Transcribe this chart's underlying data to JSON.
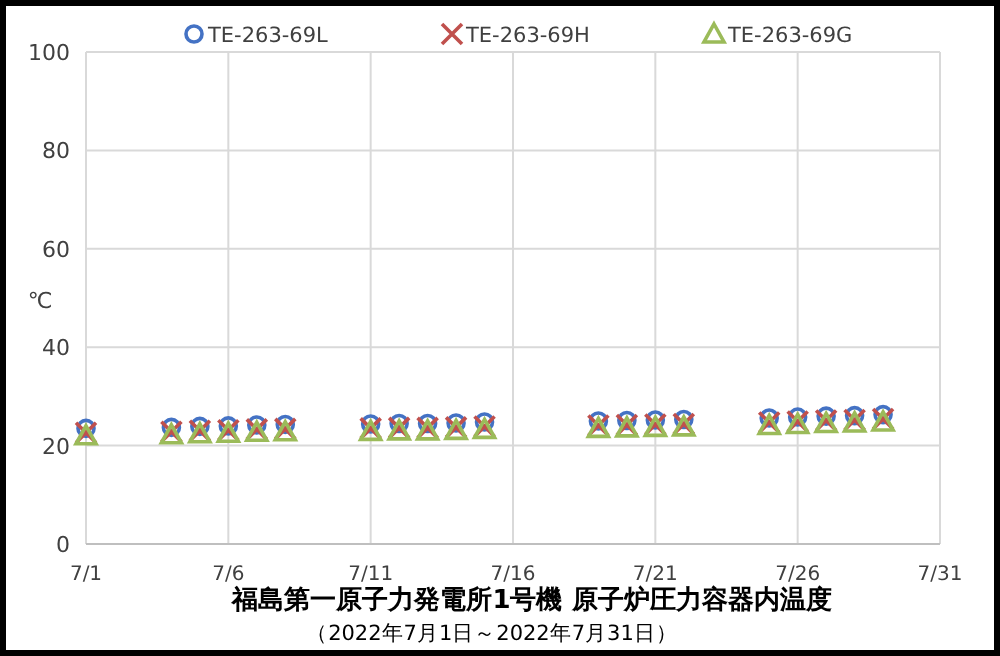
{
  "chart_data": {
    "type": "scatter",
    "title": "福島第一原子力発電所1号機 原子炉圧力容器内温度",
    "subtitle": "（2022年7月1日～2022年7月31日）",
    "ylabel": "℃",
    "x": [
      "2022-07-01",
      "2022-07-04",
      "2022-07-05",
      "2022-07-06",
      "2022-07-07",
      "2022-07-08",
      "2022-07-11",
      "2022-07-12",
      "2022-07-13",
      "2022-07-14",
      "2022-07-15",
      "2022-07-19",
      "2022-07-20",
      "2022-07-21",
      "2022-07-22",
      "2022-07-25",
      "2022-07-26",
      "2022-07-27",
      "2022-07-28",
      "2022-07-29"
    ],
    "series": [
      {
        "name": "TE-263-69L",
        "color": "#4472c4",
        "marker": "circle",
        "values": [
          23.5,
          23.7,
          23.9,
          24.0,
          24.2,
          24.3,
          24.4,
          24.5,
          24.5,
          24.6,
          24.8,
          25.0,
          25.1,
          25.2,
          25.3,
          25.6,
          25.8,
          26.0,
          26.1,
          26.3
        ]
      },
      {
        "name": "TE-263-69H",
        "color": "#c0504d",
        "marker": "cross",
        "values": [
          22.6,
          22.8,
          23.0,
          23.1,
          23.3,
          23.4,
          23.5,
          23.6,
          23.6,
          23.7,
          23.9,
          24.1,
          24.2,
          24.3,
          24.4,
          24.7,
          24.9,
          25.1,
          25.2,
          25.4
        ]
      },
      {
        "name": "TE-263-69G",
        "color": "#9bbb59",
        "marker": "triangle",
        "values": [
          22.0,
          22.2,
          22.4,
          22.5,
          22.7,
          22.8,
          22.9,
          23.0,
          23.0,
          23.1,
          23.3,
          23.5,
          23.6,
          23.7,
          23.8,
          24.1,
          24.3,
          24.5,
          24.6,
          24.8
        ]
      }
    ],
    "xlim": [
      "2022-07-01",
      "2022-07-31"
    ],
    "xticks": [
      {
        "value": "2022-07-01",
        "label": "7/1"
      },
      {
        "value": "2022-07-06",
        "label": "7/6"
      },
      {
        "value": "2022-07-11",
        "label": "7/11"
      },
      {
        "value": "2022-07-16",
        "label": "7/16"
      },
      {
        "value": "2022-07-21",
        "label": "7/21"
      },
      {
        "value": "2022-07-26",
        "label": "7/26"
      },
      {
        "value": "2022-07-31",
        "label": "7/31"
      }
    ],
    "ylim": [
      0,
      100
    ],
    "yticks": [
      0,
      20,
      40,
      60,
      80,
      100
    ],
    "grid": true,
    "legend": "top"
  }
}
